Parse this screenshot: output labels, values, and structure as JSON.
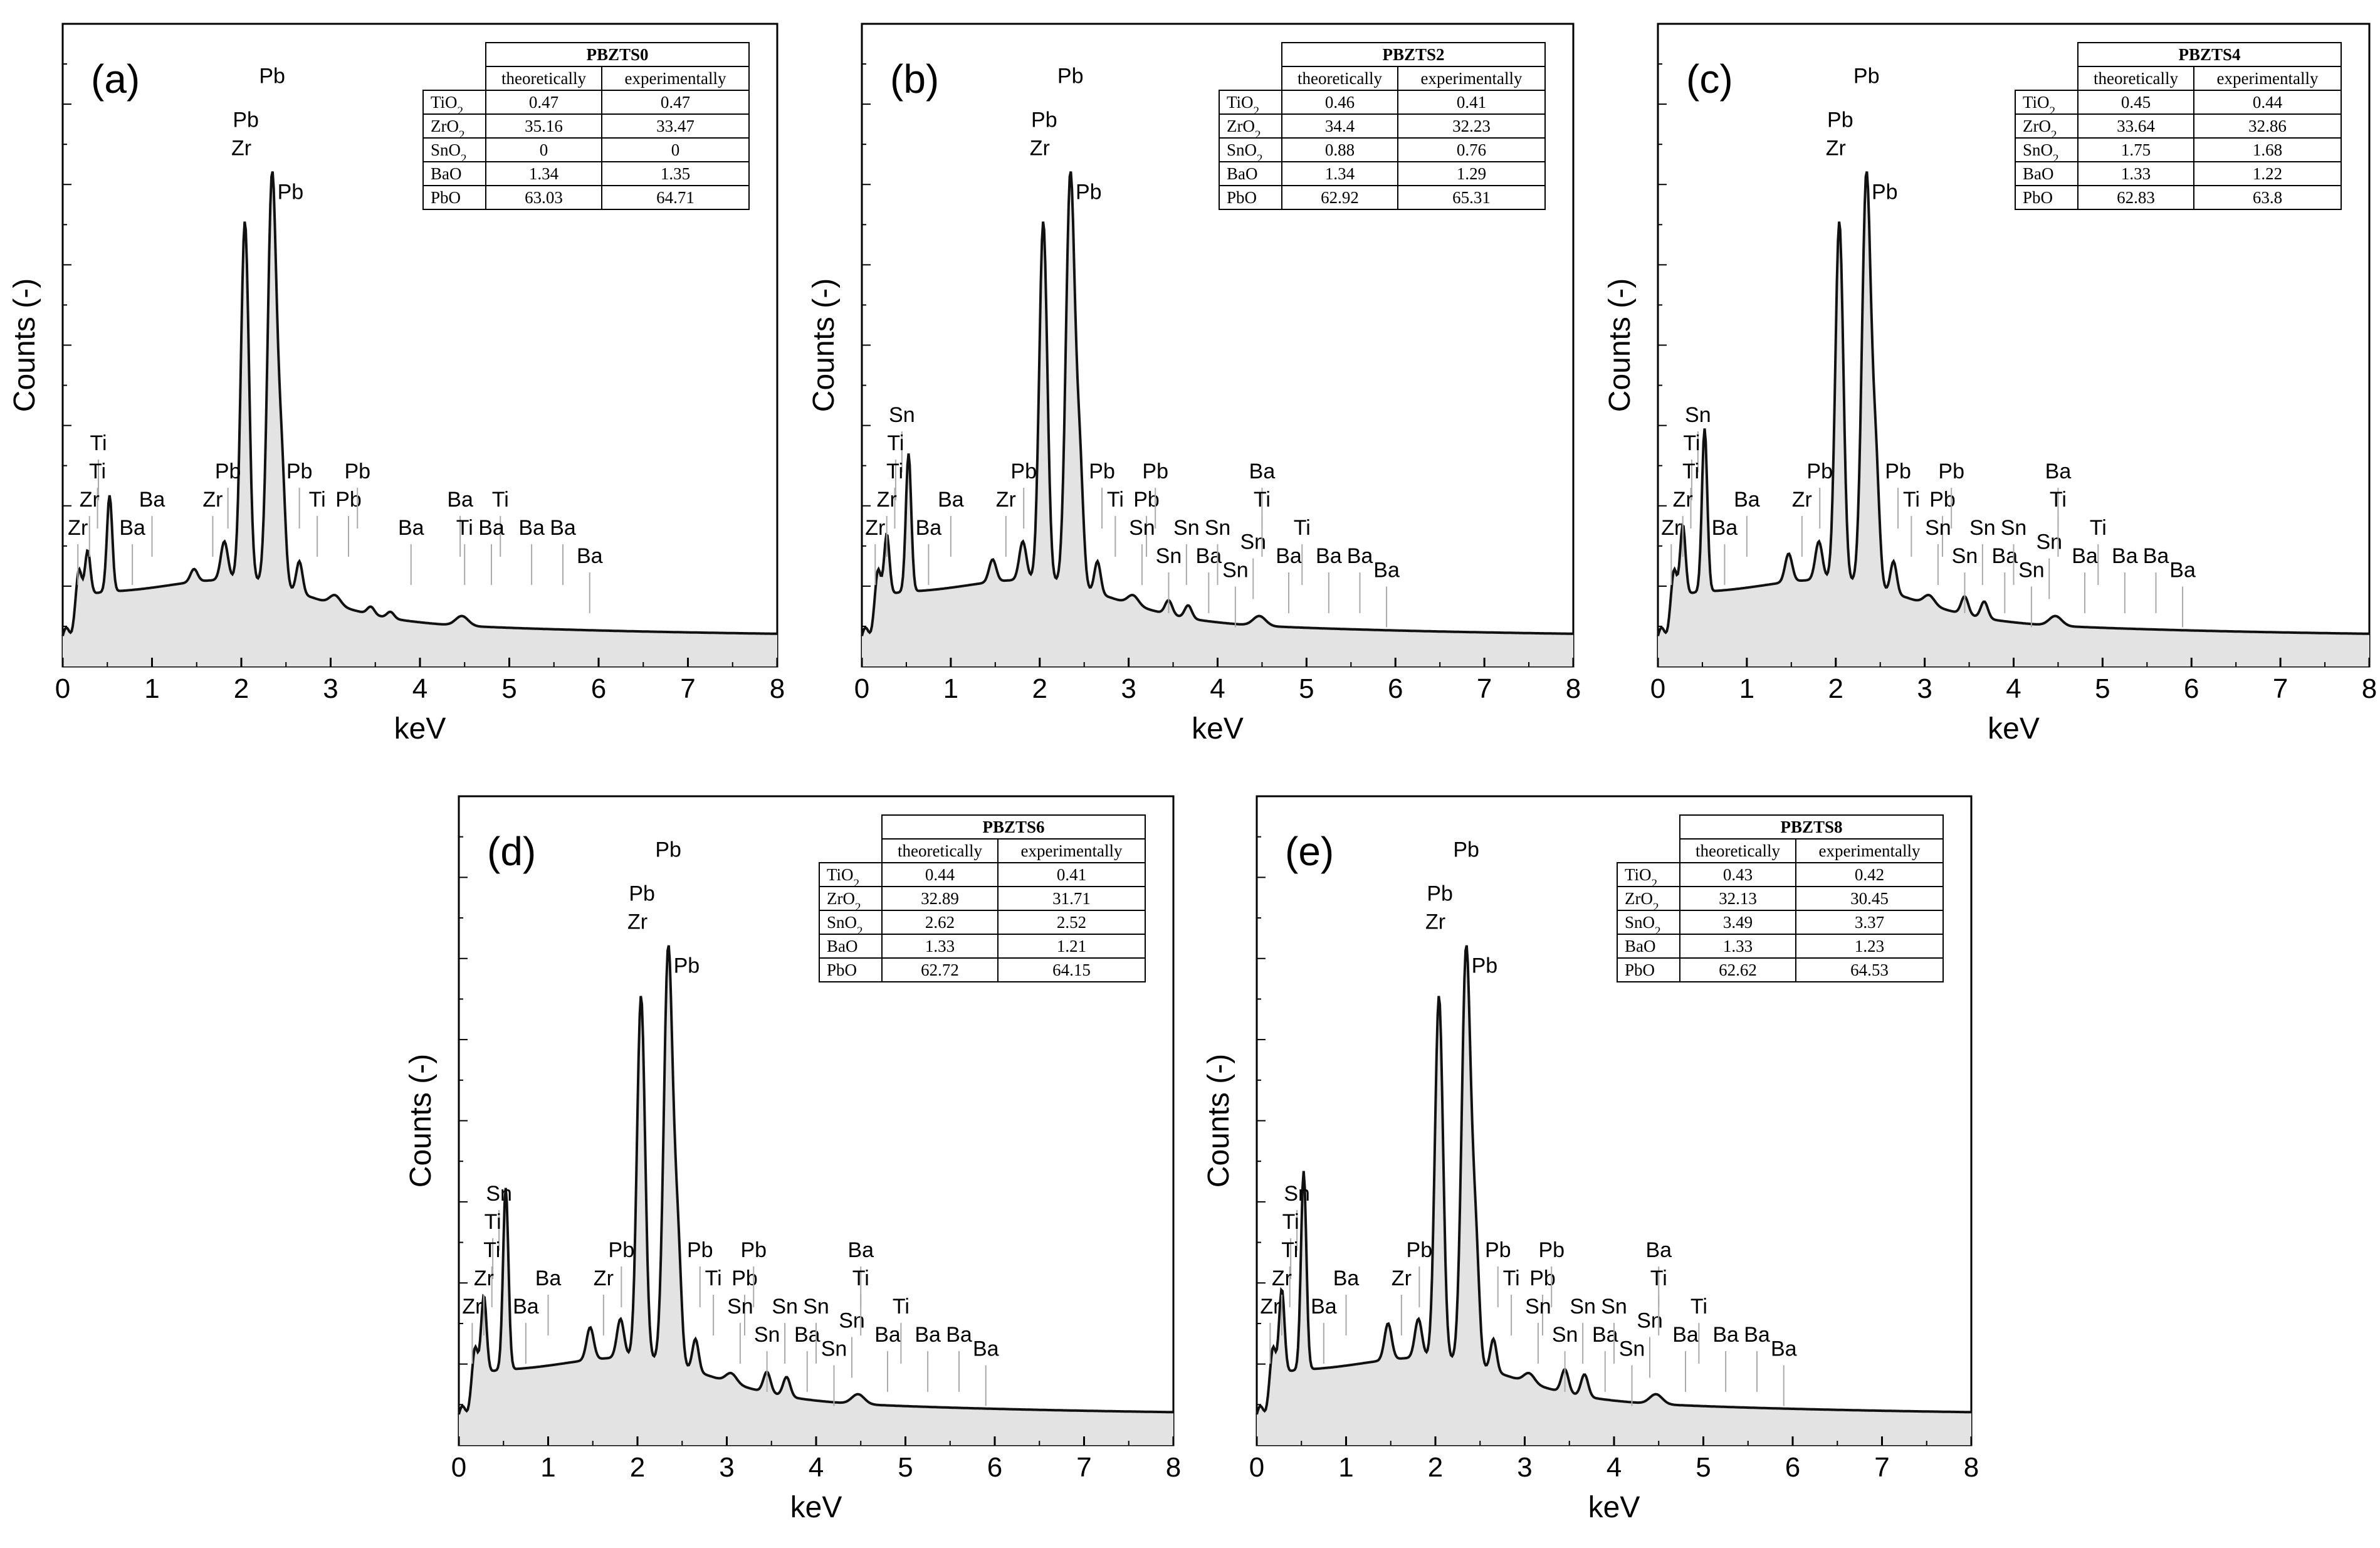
{
  "figure": {
    "chart_data": [
      {
        "type": "line",
        "panel": "(a)",
        "table_title": "PBZTS0",
        "xlabel": "keV",
        "ylabel": "Counts (-)",
        "xlim": [
          0,
          8
        ],
        "x_ticks": [
          "0",
          "1",
          "2",
          "3",
          "4",
          "5",
          "6",
          "7",
          "8"
        ],
        "table": {
          "headers": [
            "theoretically",
            "experimentally"
          ],
          "rows": [
            {
              "oxide": "TiO2",
              "theo": "0.47",
              "exp": "0.47"
            },
            {
              "oxide": "ZrO2",
              "theo": "35.16",
              "exp": "33.47"
            },
            {
              "oxide": "SnO2",
              "theo": "0",
              "exp": "0"
            },
            {
              "oxide": "BaO",
              "theo": "1.34",
              "exp": "1.35"
            },
            {
              "oxide": "PbO",
              "theo": "63.03",
              "exp": "64.71"
            }
          ]
        },
        "sn_peak": 0,
        "peak_labels": [
          {
            "t": "Ti",
            "x": 0.4,
            "l": 3
          },
          {
            "t": "Ti",
            "x": 0.39,
            "l": 2
          },
          {
            "t": "Zr",
            "x": 0.3,
            "l": 1
          },
          {
            "t": "Zr",
            "x": 0.17,
            "l": 0
          },
          {
            "t": "Ba",
            "x": 0.78,
            "l": 0
          },
          {
            "t": "Ba",
            "x": 1.0,
            "l": 1
          },
          {
            "t": "Zr",
            "x": 1.68,
            "l": 1
          },
          {
            "t": "Pb",
            "x": 1.85,
            "l": 2
          },
          {
            "t": "Pb",
            "x": 2.65,
            "l": 2
          },
          {
            "t": "Ti",
            "x": 2.85,
            "l": 1
          },
          {
            "t": "Pb",
            "x": 3.2,
            "l": 1
          },
          {
            "t": "Pb",
            "x": 3.3,
            "l": 2
          },
          {
            "t": "Ba",
            "x": 3.9,
            "l": 0
          },
          {
            "t": "Ba",
            "x": 4.45,
            "l": 1
          },
          {
            "t": "Ti",
            "x": 4.5,
            "l": 0
          },
          {
            "t": "Ti",
            "x": 4.9,
            "l": 1
          },
          {
            "t": "Ba",
            "x": 4.8,
            "l": 0
          },
          {
            "t": "Ba",
            "x": 5.25,
            "l": 0
          },
          {
            "t": "Ba",
            "x": 5.6,
            "l": 0
          },
          {
            "t": "Ba",
            "x": 5.9,
            "l": -1
          }
        ]
      },
      {
        "type": "line",
        "panel": "(b)",
        "table_title": "PBZTS2",
        "xlabel": "keV",
        "ylabel": "Counts (-)",
        "xlim": [
          0,
          8
        ],
        "x_ticks": [
          "0",
          "1",
          "2",
          "3",
          "4",
          "5",
          "6",
          "7",
          "8"
        ],
        "table": {
          "headers": [
            "theoretically",
            "experimentally"
          ],
          "rows": [
            {
              "oxide": "TiO2",
              "theo": "0.46",
              "exp": "0.41"
            },
            {
              "oxide": "ZrO2",
              "theo": "34.4",
              "exp": "32.23"
            },
            {
              "oxide": "SnO2",
              "theo": "0.88",
              "exp": "0.76"
            },
            {
              "oxide": "BaO",
              "theo": "1.34",
              "exp": "1.29"
            },
            {
              "oxide": "PbO",
              "theo": "62.92",
              "exp": "65.31"
            }
          ]
        },
        "sn_peak": 0.5,
        "peak_labels": [
          {
            "t": "Sn",
            "x": 0.45,
            "l": 4
          },
          {
            "t": "Ti",
            "x": 0.38,
            "l": 3
          },
          {
            "t": "Ti",
            "x": 0.37,
            "l": 2
          },
          {
            "t": "Zr",
            "x": 0.28,
            "l": 1
          },
          {
            "t": "Zr",
            "x": 0.15,
            "l": 0
          },
          {
            "t": "Ba",
            "x": 0.75,
            "l": 0
          },
          {
            "t": "Ba",
            "x": 1.0,
            "l": 1
          },
          {
            "t": "Zr",
            "x": 1.62,
            "l": 1
          },
          {
            "t": "Pb",
            "x": 1.82,
            "l": 2
          },
          {
            "t": "Pb",
            "x": 2.7,
            "l": 2
          },
          {
            "t": "Ti",
            "x": 2.85,
            "l": 1
          },
          {
            "t": "Pb",
            "x": 3.2,
            "l": 1
          },
          {
            "t": "Pb",
            "x": 3.3,
            "l": 2
          },
          {
            "t": "Sn",
            "x": 3.15,
            "l": 0
          },
          {
            "t": "Sn",
            "x": 3.45,
            "l": -1
          },
          {
            "t": "Sn",
            "x": 3.65,
            "l": 0
          },
          {
            "t": "Ba",
            "x": 3.9,
            "l": -1
          },
          {
            "t": "Sn",
            "x": 4.0,
            "l": 0
          },
          {
            "t": "Sn",
            "x": 4.2,
            "l": -1.5
          },
          {
            "t": "Sn",
            "x": 4.4,
            "l": -0.5
          },
          {
            "t": "Ba",
            "x": 4.5,
            "l": 2
          },
          {
            "t": "Ti",
            "x": 4.5,
            "l": 1
          },
          {
            "t": "Ba",
            "x": 4.8,
            "l": -1
          },
          {
            "t": "Ti",
            "x": 4.95,
            "l": 0
          },
          {
            "t": "Ba",
            "x": 5.25,
            "l": -1
          },
          {
            "t": "Ba",
            "x": 5.6,
            "l": -1
          },
          {
            "t": "Ba",
            "x": 5.9,
            "l": -1.5
          }
        ]
      },
      {
        "type": "line",
        "panel": "(c)",
        "table_title": "PBZTS4",
        "xlabel": "keV",
        "ylabel": "Counts (-)",
        "xlim": [
          0,
          8
        ],
        "x_ticks": [
          "0",
          "1",
          "2",
          "3",
          "4",
          "5",
          "6",
          "7",
          "8"
        ],
        "table": {
          "headers": [
            "theoretically",
            "experimentally"
          ],
          "rows": [
            {
              "oxide": "TiO2",
              "theo": "0.45",
              "exp": "0.44"
            },
            {
              "oxide": "ZrO2",
              "theo": "33.64",
              "exp": "32.86"
            },
            {
              "oxide": "SnO2",
              "theo": "1.75",
              "exp": "1.68"
            },
            {
              "oxide": "BaO",
              "theo": "1.33",
              "exp": "1.22"
            },
            {
              "oxide": "PbO",
              "theo": "62.83",
              "exp": "63.8"
            }
          ]
        },
        "sn_peak": 0.8,
        "peak_labels": [
          {
            "t": "Sn",
            "x": 0.45,
            "l": 4
          },
          {
            "t": "Ti",
            "x": 0.38,
            "l": 3
          },
          {
            "t": "Ti",
            "x": 0.37,
            "l": 2
          },
          {
            "t": "Zr",
            "x": 0.28,
            "l": 1
          },
          {
            "t": "Zr",
            "x": 0.15,
            "l": 0
          },
          {
            "t": "Ba",
            "x": 0.75,
            "l": 0
          },
          {
            "t": "Ba",
            "x": 1.0,
            "l": 1
          },
          {
            "t": "Zr",
            "x": 1.62,
            "l": 1
          },
          {
            "t": "Pb",
            "x": 1.82,
            "l": 2
          },
          {
            "t": "Pb",
            "x": 2.7,
            "l": 2
          },
          {
            "t": "Ti",
            "x": 2.85,
            "l": 1
          },
          {
            "t": "Pb",
            "x": 3.2,
            "l": 1
          },
          {
            "t": "Pb",
            "x": 3.3,
            "l": 2
          },
          {
            "t": "Sn",
            "x": 3.15,
            "l": 0
          },
          {
            "t": "Sn",
            "x": 3.45,
            "l": -1
          },
          {
            "t": "Sn",
            "x": 3.65,
            "l": 0
          },
          {
            "t": "Ba",
            "x": 3.9,
            "l": -1
          },
          {
            "t": "Sn",
            "x": 4.0,
            "l": 0
          },
          {
            "t": "Sn",
            "x": 4.2,
            "l": -1.5
          },
          {
            "t": "Sn",
            "x": 4.4,
            "l": -0.5
          },
          {
            "t": "Ba",
            "x": 4.5,
            "l": 2
          },
          {
            "t": "Ti",
            "x": 4.5,
            "l": 1
          },
          {
            "t": "Ba",
            "x": 4.8,
            "l": -1
          },
          {
            "t": "Ti",
            "x": 4.95,
            "l": 0
          },
          {
            "t": "Ba",
            "x": 5.25,
            "l": -1
          },
          {
            "t": "Ba",
            "x": 5.6,
            "l": -1
          },
          {
            "t": "Ba",
            "x": 5.9,
            "l": -1.5
          }
        ]
      },
      {
        "type": "line",
        "panel": "(d)",
        "table_title": "PBZTS6",
        "xlabel": "keV",
        "ylabel": "Counts (-)",
        "xlim": [
          0,
          8
        ],
        "x_ticks": [
          "0",
          "1",
          "2",
          "3",
          "4",
          "5",
          "6",
          "7",
          "8"
        ],
        "table": {
          "headers": [
            "theoretically",
            "experimentally"
          ],
          "rows": [
            {
              "oxide": "TiO2",
              "theo": "0.44",
              "exp": "0.41"
            },
            {
              "oxide": "ZrO2",
              "theo": "32.89",
              "exp": "31.71"
            },
            {
              "oxide": "SnO2",
              "theo": "2.62",
              "exp": "2.52"
            },
            {
              "oxide": "BaO",
              "theo": "1.33",
              "exp": "1.21"
            },
            {
              "oxide": "PbO",
              "theo": "62.72",
              "exp": "64.15"
            }
          ]
        },
        "sn_peak": 1.0,
        "peak_labels": [
          {
            "t": "Sn",
            "x": 0.45,
            "l": 4
          },
          {
            "t": "Ti",
            "x": 0.38,
            "l": 3
          },
          {
            "t": "Ti",
            "x": 0.37,
            "l": 2
          },
          {
            "t": "Zr",
            "x": 0.28,
            "l": 1
          },
          {
            "t": "Zr",
            "x": 0.15,
            "l": 0
          },
          {
            "t": "Ba",
            "x": 0.75,
            "l": 0
          },
          {
            "t": "Ba",
            "x": 1.0,
            "l": 1
          },
          {
            "t": "Zr",
            "x": 1.62,
            "l": 1
          },
          {
            "t": "Pb",
            "x": 1.82,
            "l": 2
          },
          {
            "t": "Pb",
            "x": 2.7,
            "l": 2
          },
          {
            "t": "Ti",
            "x": 2.85,
            "l": 1
          },
          {
            "t": "Pb",
            "x": 3.2,
            "l": 1
          },
          {
            "t": "Pb",
            "x": 3.3,
            "l": 2
          },
          {
            "t": "Sn",
            "x": 3.15,
            "l": 0
          },
          {
            "t": "Sn",
            "x": 3.45,
            "l": -1
          },
          {
            "t": "Sn",
            "x": 3.65,
            "l": 0
          },
          {
            "t": "Ba",
            "x": 3.9,
            "l": -1
          },
          {
            "t": "Sn",
            "x": 4.0,
            "l": 0
          },
          {
            "t": "Sn",
            "x": 4.2,
            "l": -1.5
          },
          {
            "t": "Sn",
            "x": 4.4,
            "l": -0.5
          },
          {
            "t": "Ba",
            "x": 4.5,
            "l": 2
          },
          {
            "t": "Ti",
            "x": 4.5,
            "l": 1
          },
          {
            "t": "Ba",
            "x": 4.8,
            "l": -1
          },
          {
            "t": "Ti",
            "x": 4.95,
            "l": 0
          },
          {
            "t": "Ba",
            "x": 5.25,
            "l": -1
          },
          {
            "t": "Ba",
            "x": 5.6,
            "l": -1
          },
          {
            "t": "Ba",
            "x": 5.9,
            "l": -1.5
          }
        ]
      },
      {
        "type": "line",
        "panel": "(e)",
        "table_title": "PBZTS8",
        "xlabel": "keV",
        "ylabel": "Counts (-)",
        "xlim": [
          0,
          8
        ],
        "x_ticks": [
          "0",
          "1",
          "2",
          "3",
          "4",
          "5",
          "6",
          "7",
          "8"
        ],
        "table": {
          "headers": [
            "theoretically",
            "experimentally"
          ],
          "rows": [
            {
              "oxide": "TiO2",
              "theo": "0.43",
              "exp": "0.42"
            },
            {
              "oxide": "ZrO2",
              "theo": "32.13",
              "exp": "30.45"
            },
            {
              "oxide": "SnO2",
              "theo": "3.49",
              "exp": "3.37"
            },
            {
              "oxide": "BaO",
              "theo": "1.33",
              "exp": "1.23"
            },
            {
              "oxide": "PbO",
              "theo": "62.62",
              "exp": "64.53"
            }
          ]
        },
        "sn_peak": 1.2,
        "peak_labels": [
          {
            "t": "Sn",
            "x": 0.45,
            "l": 4
          },
          {
            "t": "Ti",
            "x": 0.38,
            "l": 3
          },
          {
            "t": "Ti",
            "x": 0.37,
            "l": 2
          },
          {
            "t": "Zr",
            "x": 0.28,
            "l": 1
          },
          {
            "t": "Zr",
            "x": 0.15,
            "l": 0
          },
          {
            "t": "Ba",
            "x": 0.75,
            "l": 0
          },
          {
            "t": "Ba",
            "x": 1.0,
            "l": 1
          },
          {
            "t": "Zr",
            "x": 1.62,
            "l": 1
          },
          {
            "t": "Pb",
            "x": 1.82,
            "l": 2
          },
          {
            "t": "Pb",
            "x": 2.7,
            "l": 2
          },
          {
            "t": "Ti",
            "x": 2.85,
            "l": 1
          },
          {
            "t": "Pb",
            "x": 3.2,
            "l": 1
          },
          {
            "t": "Pb",
            "x": 3.3,
            "l": 2
          },
          {
            "t": "Sn",
            "x": 3.15,
            "l": 0
          },
          {
            "t": "Sn",
            "x": 3.45,
            "l": -1
          },
          {
            "t": "Sn",
            "x": 3.65,
            "l": 0
          },
          {
            "t": "Ba",
            "x": 3.9,
            "l": -1
          },
          {
            "t": "Sn",
            "x": 4.0,
            "l": 0
          },
          {
            "t": "Sn",
            "x": 4.2,
            "l": -1.5
          },
          {
            "t": "Sn",
            "x": 4.4,
            "l": -0.5
          },
          {
            "t": "Ba",
            "x": 4.5,
            "l": 2
          },
          {
            "t": "Ti",
            "x": 4.5,
            "l": 1
          },
          {
            "t": "Ba",
            "x": 4.8,
            "l": -1
          },
          {
            "t": "Ti",
            "x": 4.95,
            "l": 0
          },
          {
            "t": "Ba",
            "x": 5.25,
            "l": -1
          },
          {
            "t": "Ba",
            "x": 5.6,
            "l": -1
          },
          {
            "t": "Ba",
            "x": 5.9,
            "l": -1.5
          }
        ]
      }
    ]
  }
}
